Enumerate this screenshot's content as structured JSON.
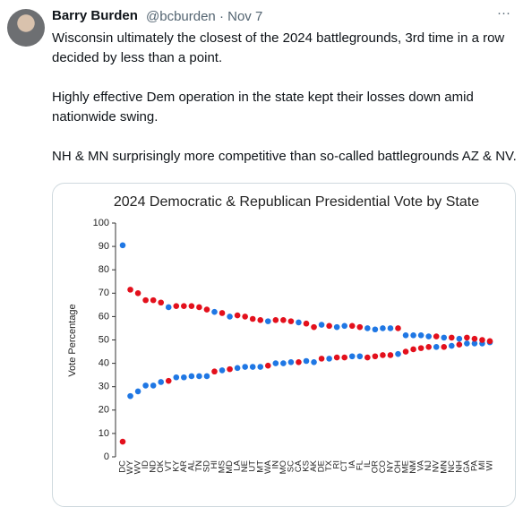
{
  "tweet": {
    "author": "Barry Burden",
    "meta": "@bcburden · Nov 7",
    "paragraphs": [
      "Wisconsin ultimately the closest of the 2024 battlegrounds, 3rd time in a row decided by less than a point.",
      "Highly effective Dem operation in the state kept their losses down amid nationwide swing.",
      "NH & MN surprisingly more competitive than so-called battlegrounds AZ & NV."
    ]
  },
  "chart_data": {
    "type": "dot",
    "title": "2024 Democratic & Republican Presidential Vote by State",
    "y_label": "Vote Percentage",
    "categories": [
      "DC",
      "WY",
      "WV",
      "ID",
      "ND",
      "OK",
      "VT",
      "KY",
      "AR",
      "AL",
      "TN",
      "SD",
      "HI",
      "MS",
      "MD",
      "LA",
      "NE",
      "UT",
      "MT",
      "WA",
      "IN",
      "MO",
      "SC",
      "CA",
      "KS",
      "AK",
      "DE",
      "TX",
      "RI",
      "CT",
      "IA",
      "FL",
      "IL",
      "OR",
      "CO",
      "NY",
      "OH",
      "ME",
      "NM",
      "VA",
      "NJ",
      "NV",
      "MN",
      "NC",
      "NH",
      "GA",
      "PA",
      "MI",
      "WI"
    ],
    "series": [
      {
        "color": "#1f77e4",
        "values": [
          90.5,
          26,
          28,
          30.5,
          30.5,
          32,
          64,
          34,
          34,
          34.5,
          34.5,
          34.5,
          62,
          37,
          60,
          38,
          38.5,
          38.5,
          38.5,
          58,
          40,
          40,
          40.5,
          57.5,
          41,
          40.5,
          56.5,
          42,
          55.5,
          56,
          43,
          43,
          55,
          54.5,
          55,
          55,
          44,
          52,
          52,
          52,
          51.5,
          47,
          51,
          47.5,
          50.5,
          48.5,
          48.5,
          48.5,
          49
        ]
      },
      {
        "color": "#e3101c",
        "values": [
          6.5,
          71.5,
          70,
          67,
          67,
          66,
          32.5,
          64.5,
          64.5,
          64.5,
          64,
          63,
          36.5,
          61.5,
          37.5,
          60.5,
          60,
          59,
          58.5,
          39,
          58.5,
          58.5,
          58,
          40.5,
          57,
          55.5,
          42,
          56,
          42.5,
          42.5,
          56,
          55.5,
          42.5,
          43,
          43.5,
          43.5,
          55,
          45,
          46,
          46.5,
          47,
          51.5,
          47,
          51,
          48,
          51,
          50.5,
          50,
          49.5
        ]
      }
    ],
    "ylim": [
      0,
      100
    ],
    "yticks": [
      0,
      10,
      20,
      30,
      40,
      50,
      60,
      70,
      80,
      90,
      100
    ],
    "grid": false
  }
}
